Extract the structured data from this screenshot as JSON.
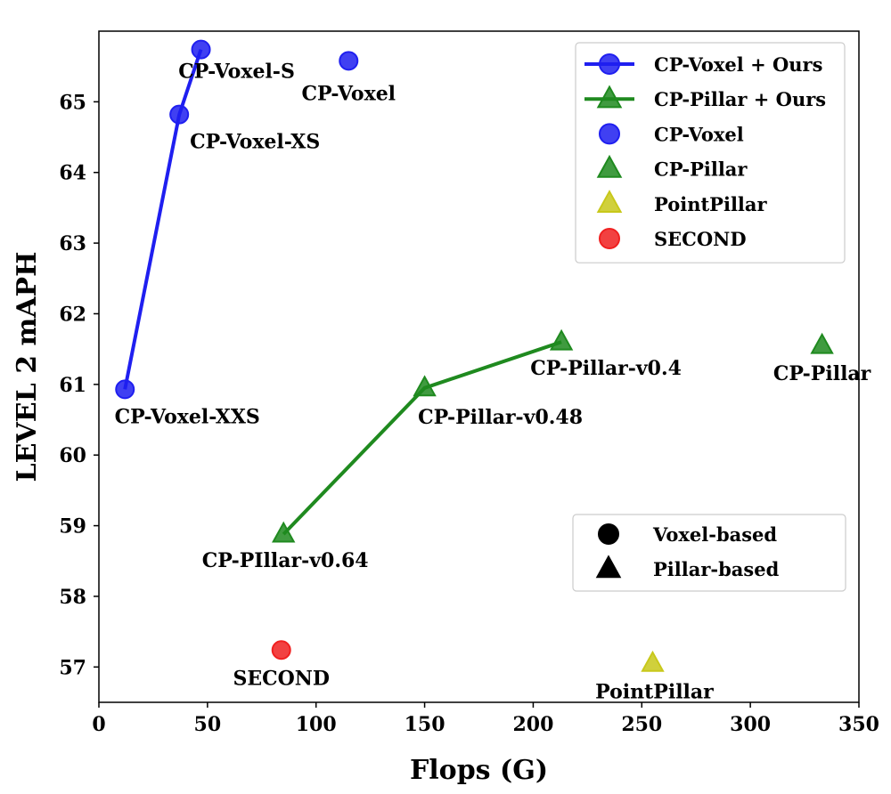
{
  "chart_data": {
    "type": "scatter",
    "title": "",
    "xlabel": "Flops (G)",
    "ylabel": "LEVEL 2 mAPH",
    "xlim": [
      0,
      350
    ],
    "ylim": [
      56.5,
      66.0
    ],
    "xticks": [
      0,
      50,
      100,
      150,
      200,
      250,
      300,
      350
    ],
    "yticks": [
      57,
      58,
      59,
      60,
      61,
      62,
      63,
      64,
      65
    ],
    "grid": false,
    "series": [
      {
        "name": "CP-Voxel + Ours",
        "marker": "circle",
        "line": true,
        "color": "#1f1ff0",
        "points": [
          {
            "x": 12,
            "y": 60.93,
            "label": "CP-Voxel-XXS"
          },
          {
            "x": 37,
            "y": 64.82,
            "label": "CP-Voxel-XS"
          },
          {
            "x": 47,
            "y": 65.74,
            "label": "CP-Voxel-S"
          }
        ]
      },
      {
        "name": "CP-Pillar + Ours",
        "marker": "triangle",
        "line": true,
        "color": "#1f8a1f",
        "points": [
          {
            "x": 85,
            "y": 58.88,
            "label": "CP-PIllar-v0.64"
          },
          {
            "x": 150,
            "y": 60.95,
            "label": "CP-Pillar-v0.48"
          },
          {
            "x": 213,
            "y": 61.6,
            "label": "CP-Pillar-v0.4"
          }
        ]
      },
      {
        "name": "CP-Voxel",
        "marker": "circle",
        "line": false,
        "color": "#1f1ff0",
        "points": [
          {
            "x": 115,
            "y": 65.58,
            "label": "CP-Voxel"
          }
        ]
      },
      {
        "name": "CP-Pillar",
        "marker": "triangle",
        "line": false,
        "color": "#1f8a1f",
        "points": [
          {
            "x": 333,
            "y": 61.55,
            "label": "CP-Pillar"
          }
        ]
      },
      {
        "name": "PointPillar",
        "marker": "triangle",
        "line": false,
        "color": "#c8c81a",
        "points": [
          {
            "x": 255,
            "y": 57.05,
            "label": "PointPillar"
          }
        ]
      },
      {
        "name": "SECOND",
        "marker": "circle",
        "line": false,
        "color": "#f02020",
        "points": [
          {
            "x": 84,
            "y": 57.24,
            "label": "SECOND"
          }
        ]
      }
    ],
    "legend": {
      "placement": "top-right",
      "entries": [
        "CP-Voxel + Ours",
        "CP-Pillar + Ours",
        "CP-Voxel",
        "CP-Pillar",
        "PointPillar",
        "SECOND"
      ]
    },
    "shape_legend": {
      "placement": "lower-right",
      "entries": [
        {
          "label": "Voxel-based",
          "marker": "circle"
        },
        {
          "label": "Pillar-based",
          "marker": "triangle"
        }
      ]
    }
  }
}
